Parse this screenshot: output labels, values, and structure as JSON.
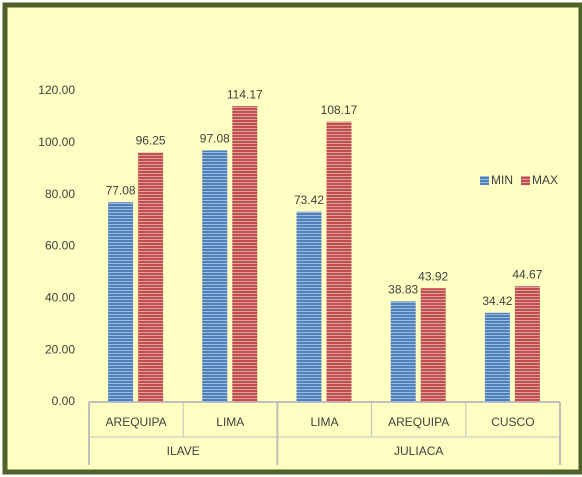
{
  "chart_data": {
    "type": "bar",
    "groups": [
      {
        "name": "ILAVE",
        "categories": [
          "AREQUIPA",
          "LIMA"
        ]
      },
      {
        "name": "JULIACA",
        "categories": [
          "LIMA",
          "AREQUIPA",
          "CUSCO"
        ]
      }
    ],
    "series": [
      {
        "name": "MIN",
        "color": "#4f81bd",
        "values": [
          77.08,
          97.08,
          73.42,
          38.83,
          34.42
        ]
      },
      {
        "name": "MAX",
        "color": "#c0504d",
        "values": [
          96.25,
          114.17,
          108.17,
          43.92,
          44.67
        ]
      }
    ],
    "ylim": [
      0,
      120
    ],
    "yticks": [
      {
        "value": 0,
        "label": "0.00"
      },
      {
        "value": 20,
        "label": "20.00"
      },
      {
        "value": 40,
        "label": "40.00"
      },
      {
        "value": 60,
        "label": "60.00"
      },
      {
        "value": 80,
        "label": "80.00"
      },
      {
        "value": 100,
        "label": "100.00"
      },
      {
        "value": 120,
        "label": "120.00"
      }
    ],
    "grid": false,
    "legend": "right"
  }
}
